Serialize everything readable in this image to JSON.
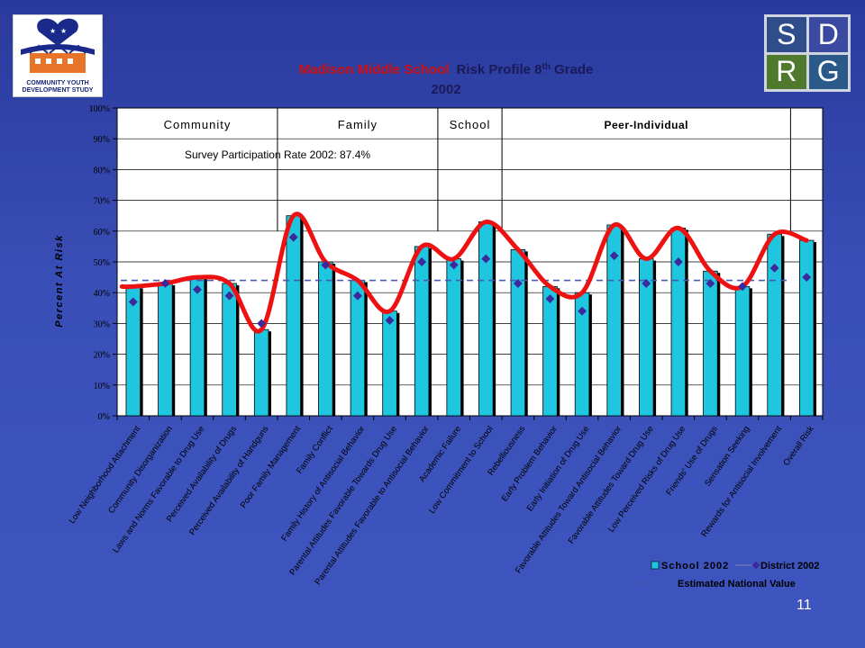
{
  "logo_left": {
    "caption": "COMMUNITY YOUTH DEVELOPMENT STUDY"
  },
  "logo_right": {
    "letters": [
      "S",
      "D",
      "R",
      "G"
    ]
  },
  "slide_number": "11",
  "colors": {
    "bar": "#1fc6e0",
    "school_line": "#ee1111",
    "district_marker": "#3a2a9c",
    "national_line": "#4a5ab0",
    "title_red": "#d01010",
    "title_dark": "#1a1a5a"
  },
  "chart_data": {
    "type": "bar",
    "title_part1": "Madison Middle School",
    "title_part2": "Risk Profile 8",
    "title_sup": "th",
    "title_part3": "Grade",
    "subtitle": "2002",
    "ylabel": "Percent At Risk",
    "ylim": [
      0,
      100
    ],
    "yticks": [
      "0%",
      "10%",
      "20%",
      "30%",
      "40%",
      "50%",
      "60%",
      "70%",
      "80%",
      "90%",
      "100%"
    ],
    "domains": [
      {
        "label": "Community",
        "from": 0,
        "to": 5
      },
      {
        "label": "Family",
        "from": 5,
        "to": 10
      },
      {
        "label": "School",
        "from": 10,
        "to": 12
      },
      {
        "label": "Peer-Individual",
        "from": 12,
        "to": 21
      }
    ],
    "participation": "Survey Participation Rate 2002: 87.4%",
    "national_value": 44,
    "categories": [
      "Low Neighborhood Attachment",
      "Community Disorganization",
      "Laws and Norms Favorable to Drug Use",
      "Perceived Availability of Drugs",
      "Perceived Availability of Handguns",
      "Poor Family Management",
      "Family Conflict",
      "Family History of Antisocial Behavior",
      "Parental Attitudes Favorable Towards Drug Use",
      "Parental Attitudes Favorable to Antisocial Behavior",
      "Academic Failure",
      "Low Commitment to School",
      "Rebelliousness",
      "Early Problem Behavior",
      "Early Initiation of Drug Use",
      "Favorable Attitudes Toward Antisocial Behavior",
      "Favorable Attitudes Toward Drug Use",
      "Low Perceived Risks of Drug Use",
      "Friends' Use of Drugs",
      "Sensation Seeking",
      "Rewards for Antisocial Involvement",
      "Overall Risk"
    ],
    "series": [
      {
        "name": "School 2002",
        "values": [
          42,
          43,
          45,
          43,
          28,
          65,
          50,
          44,
          34,
          55,
          51,
          63,
          54,
          42,
          40,
          62,
          51,
          61,
          47,
          42,
          59,
          57
        ]
      },
      {
        "name": "District 2002",
        "values": [
          37,
          43,
          41,
          39,
          30,
          58,
          49,
          39,
          31,
          50,
          49,
          51,
          43,
          38,
          34,
          52,
          43,
          50,
          43,
          42,
          48,
          45
        ]
      }
    ],
    "legend": {
      "placement": "bottom-right",
      "school": "School 2002",
      "district": "District 2002",
      "national": "Estimated National Value"
    }
  }
}
